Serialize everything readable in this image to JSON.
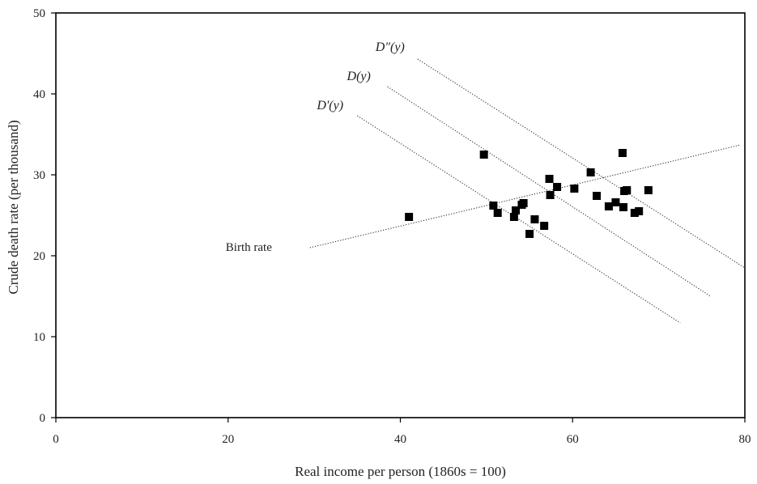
{
  "chart_data": {
    "type": "scatter",
    "xlabel": "Real income per person (1860s = 100)",
    "ylabel": "Crude death rate (per thousand)",
    "xlim": [
      0,
      80
    ],
    "ylim": [
      0,
      50
    ],
    "x_ticks": [
      "0",
      "20",
      "40",
      "60",
      "80"
    ],
    "y_ticks": [
      "0",
      "10",
      "20",
      "30",
      "40",
      "50"
    ],
    "grid": false,
    "series": [
      {
        "marker": "square",
        "color": "#000000",
        "points": [
          [
            41.0,
            24.8
          ],
          [
            49.7,
            32.5
          ],
          [
            50.8,
            26.2
          ],
          [
            51.3,
            25.3
          ],
          [
            53.2,
            24.8
          ],
          [
            53.4,
            25.6
          ],
          [
            54.1,
            26.3
          ],
          [
            54.3,
            26.5
          ],
          [
            55.0,
            22.7
          ],
          [
            55.6,
            24.5
          ],
          [
            56.7,
            23.7
          ],
          [
            57.3,
            29.5
          ],
          [
            57.4,
            27.5
          ],
          [
            58.2,
            28.5
          ],
          [
            60.2,
            28.3
          ],
          [
            62.1,
            30.3
          ],
          [
            62.8,
            27.4
          ],
          [
            64.2,
            26.1
          ],
          [
            65.0,
            26.6
          ],
          [
            65.8,
            32.7
          ],
          [
            65.9,
            26.0
          ],
          [
            66.0,
            28.0
          ],
          [
            66.3,
            28.1
          ],
          [
            67.2,
            25.3
          ],
          [
            67.7,
            25.5
          ],
          [
            68.8,
            28.1
          ]
        ]
      }
    ],
    "lines": [
      {
        "name": "D\"(y)",
        "style": "dotted",
        "x": [
          42.0,
          80.0
        ],
        "y": [
          44.3,
          18.5
        ]
      },
      {
        "name": "D(y)",
        "style": "dotted",
        "x": [
          38.5,
          76.0
        ],
        "y": [
          40.9,
          15.0
        ]
      },
      {
        "name": "D'(y)",
        "style": "dotted",
        "x": [
          35.0,
          72.5
        ],
        "y": [
          37.3,
          11.7
        ]
      },
      {
        "name": "Birth rate",
        "style": "dotted",
        "x": [
          29.5,
          79.5
        ],
        "y": [
          21.0,
          33.7
        ]
      }
    ]
  }
}
